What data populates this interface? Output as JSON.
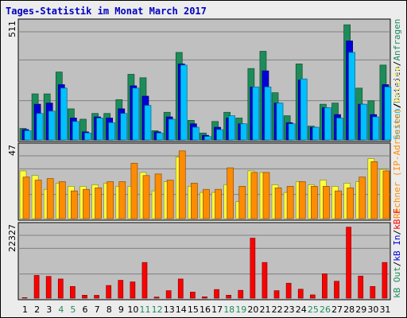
{
  "title": "Tages-Statistik im Monat March 2017",
  "colors": {
    "anfragen": "#1e8c5a",
    "dateien": "#0000d8",
    "seiten": "#00c0ff",
    "besuche": "#ffff40",
    "rechner": "#ff8c00",
    "kbin": "#1e8c5a",
    "kbout": "#0000d8",
    "kbf": "#ff0000",
    "panel_bg": "#c0c0c0",
    "grid": "#808080",
    "weekend_day": "#1e8c5a"
  },
  "chart_data": [
    {
      "type": "bar",
      "title": "Tages-Statistik im Monat March 2017",
      "ymax_label": "511",
      "ylim": [
        0,
        511
      ],
      "legend": [
        {
          "name": "Anfragen",
          "color": "#1e8c5a"
        },
        {
          "name": "Dateien",
          "color": "#0000d8"
        },
        {
          "name": "Seiten",
          "color": "#00c0ff"
        }
      ],
      "legend_separator": "/",
      "categories": [
        "1",
        "2",
        "3",
        "4",
        "5",
        "6",
        "7",
        "8",
        "9",
        "10",
        "11",
        "12",
        "13",
        "14",
        "15",
        "16",
        "17",
        "18",
        "19",
        "20",
        "21",
        "22",
        "23",
        "24",
        "25",
        "26",
        "27",
        "28",
        "29",
        "30",
        "31"
      ],
      "series": [
        {
          "name": "Anfragen",
          "values": [
            50,
            200,
            200,
            295,
            135,
            90,
            115,
            115,
            175,
            285,
            270,
            40,
            120,
            380,
            85,
            30,
            80,
            120,
            95,
            310,
            385,
            205,
            105,
            330,
            60,
            155,
            160,
            500,
            225,
            170,
            325
          ]
        },
        {
          "name": "Dateien",
          "values": [
            45,
            155,
            160,
            240,
            95,
            35,
            100,
            95,
            135,
            235,
            190,
            35,
            100,
            330,
            70,
            20,
            55,
            95,
            70,
            230,
            300,
            160,
            75,
            260,
            55,
            140,
            110,
            430,
            155,
            110,
            240
          ]
        },
        {
          "name": "Seiten",
          "values": [
            40,
            115,
            125,
            225,
            80,
            30,
            95,
            75,
            115,
            225,
            150,
            30,
            90,
            325,
            55,
            15,
            45,
            105,
            70,
            230,
            230,
            160,
            70,
            265,
            55,
            140,
            95,
            380,
            155,
            100,
            230
          ]
        }
      ]
    },
    {
      "type": "bar",
      "ymax_label": "47",
      "ylim": [
        0,
        47
      ],
      "legend": [
        {
          "name": "Besuche",
          "color": "#ffff40"
        },
        {
          "name": "Rechner (IP-Adressen)",
          "color": "#ff8c00"
        }
      ],
      "legend_separator": "/",
      "categories": [
        "1",
        "2",
        "3",
        "4",
        "5",
        "6",
        "7",
        "8",
        "9",
        "10",
        "11",
        "12",
        "13",
        "14",
        "15",
        "16",
        "17",
        "18",
        "19",
        "20",
        "21",
        "22",
        "23",
        "24",
        "25",
        "26",
        "27",
        "28",
        "29",
        "30",
        "31"
      ],
      "series": [
        {
          "name": "Besuche",
          "values": [
            31,
            28,
            19,
            23,
            21,
            21,
            22,
            23,
            21,
            21,
            30,
            18,
            24,
            40,
            21,
            17,
            17,
            22,
            11,
            31,
            30,
            22,
            17,
            24,
            22,
            25,
            21,
            23,
            24,
            39,
            32
          ]
        },
        {
          "name": "Rechner (IP-Adressen)",
          "values": [
            27,
            25,
            26,
            24,
            18,
            19,
            20,
            24,
            24,
            36,
            28,
            29,
            25,
            44,
            23,
            19,
            19,
            33,
            21,
            30,
            30,
            20,
            21,
            24,
            21,
            21,
            18,
            20,
            27,
            37,
            31
          ]
        }
      ]
    },
    {
      "type": "bar",
      "ymax_label": "22327",
      "ylim": [
        0,
        22327
      ],
      "legend": [
        {
          "name": "kB F",
          "color": "#ff0000"
        },
        {
          "name": "kB In",
          "color": "#0000d8"
        },
        {
          "name": "kB Out",
          "color": "#1e8c5a"
        }
      ],
      "legend_separator": "/",
      "categories": [
        "1",
        "2",
        "3",
        "4",
        "5",
        "6",
        "7",
        "8",
        "9",
        "10",
        "11",
        "12",
        "13",
        "14",
        "15",
        "16",
        "17",
        "18",
        "19",
        "20",
        "21",
        "22",
        "23",
        "24",
        "25",
        "26",
        "27",
        "28",
        "29",
        "30",
        "31"
      ],
      "series": [
        {
          "name": "kB F",
          "values": [
            150,
            7000,
            6700,
            5900,
            3600,
            900,
            860,
            3900,
            5500,
            5000,
            11000,
            320,
            2300,
            5900,
            1850,
            400,
            2650,
            900,
            2400,
            18500,
            11000,
            2300,
            4600,
            2750,
            1000,
            7500,
            5200,
            21900,
            6800,
            3600,
            11000
          ]
        },
        {
          "name": "kB In",
          "values": [
            0,
            0,
            0,
            0,
            0,
            0,
            0,
            0,
            0,
            0,
            0,
            0,
            0,
            0,
            0,
            0,
            0,
            0,
            0,
            0,
            0,
            0,
            0,
            0,
            0,
            0,
            0,
            0,
            0,
            0,
            0
          ]
        },
        {
          "name": "kB Out",
          "values": [
            0,
            0,
            0,
            0,
            0,
            0,
            0,
            0,
            0,
            0,
            0,
            0,
            0,
            0,
            0,
            0,
            0,
            0,
            0,
            0,
            0,
            0,
            0,
            0,
            0,
            0,
            0,
            0,
            0,
            0,
            0
          ]
        }
      ]
    }
  ],
  "weekend_days": [
    4,
    5,
    11,
    12,
    18,
    19,
    25,
    26
  ]
}
